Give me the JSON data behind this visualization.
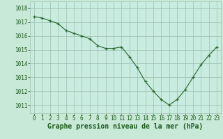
{
  "x": [
    0,
    1,
    2,
    3,
    4,
    5,
    6,
    7,
    8,
    9,
    10,
    11,
    12,
    13,
    14,
    15,
    16,
    17,
    18,
    19,
    20,
    21,
    22,
    23
  ],
  "y": [
    1017.4,
    1017.3,
    1017.1,
    1016.9,
    1016.4,
    1016.2,
    1016.0,
    1015.8,
    1015.3,
    1015.1,
    1015.1,
    1015.2,
    1014.5,
    1013.7,
    1012.7,
    1012.0,
    1011.4,
    1011.0,
    1011.4,
    1012.1,
    1013.0,
    1013.9,
    1014.6,
    1015.2
  ],
  "line_color": "#2d6a2d",
  "marker": "+",
  "bg_color": "#c8e8d8",
  "plot_bg_color": "#c8ece0",
  "grid_color": "#9dbfaf",
  "xlabel": "Graphe pression niveau de la mer (hPa)",
  "tick_color": "#1a5a1a",
  "ylim_min": 1010.4,
  "ylim_max": 1018.5,
  "xtick_labels": [
    "0",
    "1",
    "2",
    "3",
    "4",
    "5",
    "6",
    "7",
    "8",
    "9",
    "10",
    "11",
    "12",
    "13",
    "14",
    "15",
    "16",
    "17",
    "18",
    "19",
    "20",
    "21",
    "22",
    "23"
  ],
  "ytick_labels": [
    "1011",
    "1012",
    "1013",
    "1014",
    "1015",
    "1016",
    "1017",
    "1018"
  ],
  "tick_fontsize": 5.5,
  "xlabel_fontsize": 7.0
}
